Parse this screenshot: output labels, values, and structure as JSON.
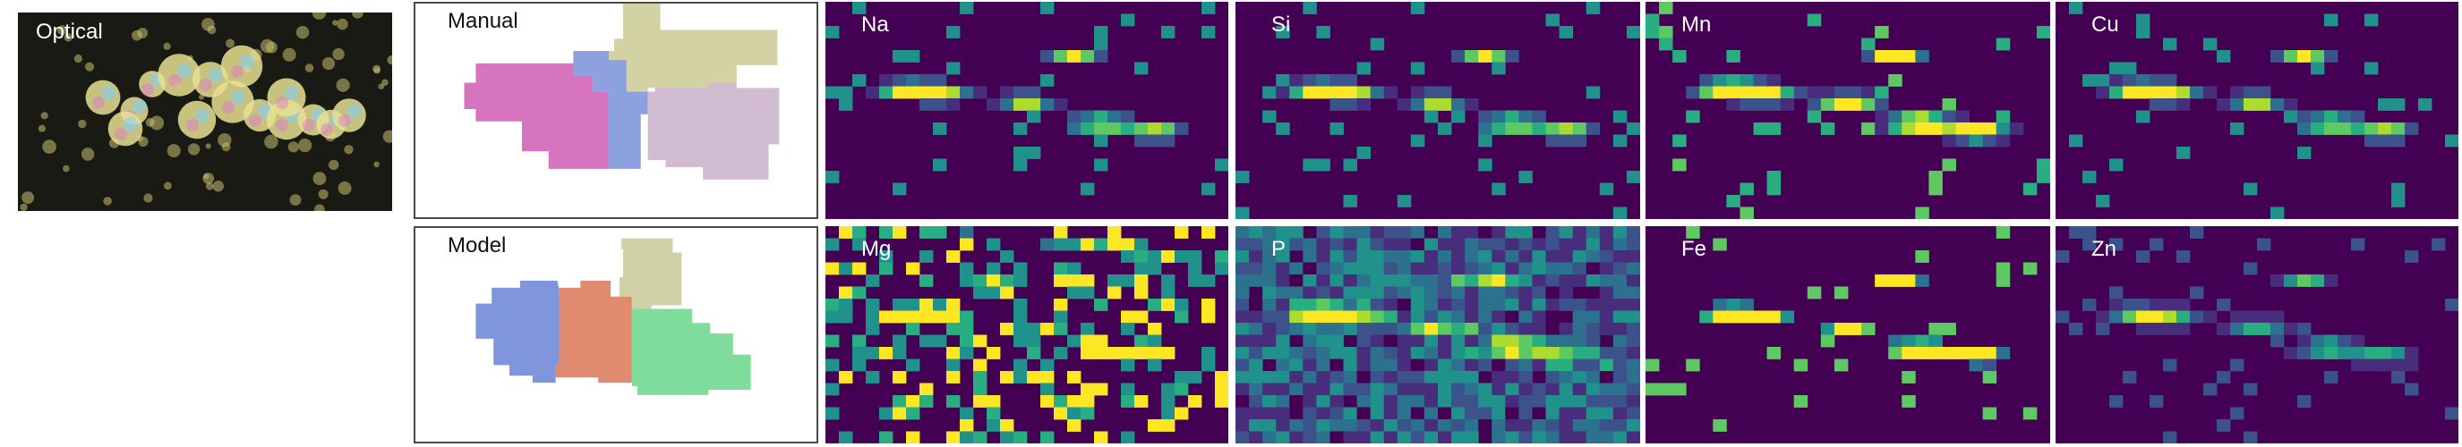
{
  "optical": {
    "label": "Optical"
  },
  "segmentation": [
    {
      "label": "Manual",
      "regions": [
        "#d774bf",
        "#8da0df",
        "#d2d2a4",
        "#d2bcd2"
      ]
    },
    {
      "label": "Model",
      "regions": [
        "#7f95dc",
        "#e08a70",
        "#cfd0a6",
        "#7fdc9b"
      ]
    }
  ],
  "element_maps": [
    {
      "label": "Na",
      "colormap": "viridis"
    },
    {
      "label": "Si",
      "colormap": "viridis"
    },
    {
      "label": "Mn",
      "colormap": "viridis"
    },
    {
      "label": "Cu",
      "colormap": "viridis"
    },
    {
      "label": "Mg",
      "colormap": "viridis"
    },
    {
      "label": "P",
      "colormap": "viridis"
    },
    {
      "label": "Fe",
      "colormap": "viridis"
    },
    {
      "label": "Zn",
      "colormap": "viridis"
    }
  ],
  "colors": {
    "map_background": "#440154",
    "panel_border": "#4a4a4a"
  }
}
